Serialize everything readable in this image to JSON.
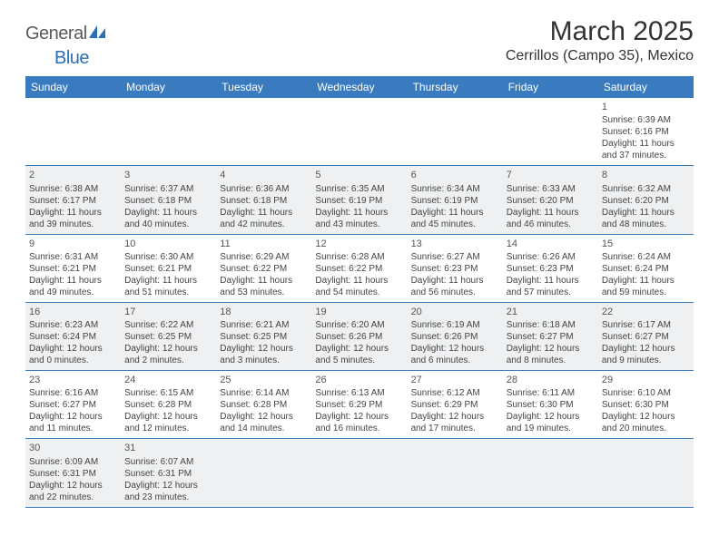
{
  "logo": {
    "text_gray": "General",
    "text_blue": "Blue",
    "icon_color": "#2b6fb5"
  },
  "title": "March 2025",
  "location": "Cerrillos (Campo 35), Mexico",
  "colors": {
    "header_bg": "#3a7bbf",
    "shaded_bg": "#eef0f2",
    "border": "#3a7bbf"
  },
  "weekdays": [
    "Sunday",
    "Monday",
    "Tuesday",
    "Wednesday",
    "Thursday",
    "Friday",
    "Saturday"
  ],
  "weeks": [
    [
      {
        "blank": true,
        "shaded": false
      },
      {
        "blank": true,
        "shaded": false
      },
      {
        "blank": true,
        "shaded": false
      },
      {
        "blank": true,
        "shaded": false
      },
      {
        "blank": true,
        "shaded": false
      },
      {
        "blank": true,
        "shaded": false
      },
      {
        "num": "1",
        "shaded": false,
        "sunrise": "Sunrise: 6:39 AM",
        "sunset": "Sunset: 6:16 PM",
        "daylight1": "Daylight: 11 hours",
        "daylight2": "and 37 minutes."
      }
    ],
    [
      {
        "num": "2",
        "shaded": true,
        "sunrise": "Sunrise: 6:38 AM",
        "sunset": "Sunset: 6:17 PM",
        "daylight1": "Daylight: 11 hours",
        "daylight2": "and 39 minutes."
      },
      {
        "num": "3",
        "shaded": true,
        "sunrise": "Sunrise: 6:37 AM",
        "sunset": "Sunset: 6:18 PM",
        "daylight1": "Daylight: 11 hours",
        "daylight2": "and 40 minutes."
      },
      {
        "num": "4",
        "shaded": true,
        "sunrise": "Sunrise: 6:36 AM",
        "sunset": "Sunset: 6:18 PM",
        "daylight1": "Daylight: 11 hours",
        "daylight2": "and 42 minutes."
      },
      {
        "num": "5",
        "shaded": true,
        "sunrise": "Sunrise: 6:35 AM",
        "sunset": "Sunset: 6:19 PM",
        "daylight1": "Daylight: 11 hours",
        "daylight2": "and 43 minutes."
      },
      {
        "num": "6",
        "shaded": true,
        "sunrise": "Sunrise: 6:34 AM",
        "sunset": "Sunset: 6:19 PM",
        "daylight1": "Daylight: 11 hours",
        "daylight2": "and 45 minutes."
      },
      {
        "num": "7",
        "shaded": true,
        "sunrise": "Sunrise: 6:33 AM",
        "sunset": "Sunset: 6:20 PM",
        "daylight1": "Daylight: 11 hours",
        "daylight2": "and 46 minutes."
      },
      {
        "num": "8",
        "shaded": true,
        "sunrise": "Sunrise: 6:32 AM",
        "sunset": "Sunset: 6:20 PM",
        "daylight1": "Daylight: 11 hours",
        "daylight2": "and 48 minutes."
      }
    ],
    [
      {
        "num": "9",
        "shaded": false,
        "sunrise": "Sunrise: 6:31 AM",
        "sunset": "Sunset: 6:21 PM",
        "daylight1": "Daylight: 11 hours",
        "daylight2": "and 49 minutes."
      },
      {
        "num": "10",
        "shaded": false,
        "sunrise": "Sunrise: 6:30 AM",
        "sunset": "Sunset: 6:21 PM",
        "daylight1": "Daylight: 11 hours",
        "daylight2": "and 51 minutes."
      },
      {
        "num": "11",
        "shaded": false,
        "sunrise": "Sunrise: 6:29 AM",
        "sunset": "Sunset: 6:22 PM",
        "daylight1": "Daylight: 11 hours",
        "daylight2": "and 53 minutes."
      },
      {
        "num": "12",
        "shaded": false,
        "sunrise": "Sunrise: 6:28 AM",
        "sunset": "Sunset: 6:22 PM",
        "daylight1": "Daylight: 11 hours",
        "daylight2": "and 54 minutes."
      },
      {
        "num": "13",
        "shaded": false,
        "sunrise": "Sunrise: 6:27 AM",
        "sunset": "Sunset: 6:23 PM",
        "daylight1": "Daylight: 11 hours",
        "daylight2": "and 56 minutes."
      },
      {
        "num": "14",
        "shaded": false,
        "sunrise": "Sunrise: 6:26 AM",
        "sunset": "Sunset: 6:23 PM",
        "daylight1": "Daylight: 11 hours",
        "daylight2": "and 57 minutes."
      },
      {
        "num": "15",
        "shaded": false,
        "sunrise": "Sunrise: 6:24 AM",
        "sunset": "Sunset: 6:24 PM",
        "daylight1": "Daylight: 11 hours",
        "daylight2": "and 59 minutes."
      }
    ],
    [
      {
        "num": "16",
        "shaded": true,
        "sunrise": "Sunrise: 6:23 AM",
        "sunset": "Sunset: 6:24 PM",
        "daylight1": "Daylight: 12 hours",
        "daylight2": "and 0 minutes."
      },
      {
        "num": "17",
        "shaded": true,
        "sunrise": "Sunrise: 6:22 AM",
        "sunset": "Sunset: 6:25 PM",
        "daylight1": "Daylight: 12 hours",
        "daylight2": "and 2 minutes."
      },
      {
        "num": "18",
        "shaded": true,
        "sunrise": "Sunrise: 6:21 AM",
        "sunset": "Sunset: 6:25 PM",
        "daylight1": "Daylight: 12 hours",
        "daylight2": "and 3 minutes."
      },
      {
        "num": "19",
        "shaded": true,
        "sunrise": "Sunrise: 6:20 AM",
        "sunset": "Sunset: 6:26 PM",
        "daylight1": "Daylight: 12 hours",
        "daylight2": "and 5 minutes."
      },
      {
        "num": "20",
        "shaded": true,
        "sunrise": "Sunrise: 6:19 AM",
        "sunset": "Sunset: 6:26 PM",
        "daylight1": "Daylight: 12 hours",
        "daylight2": "and 6 minutes."
      },
      {
        "num": "21",
        "shaded": true,
        "sunrise": "Sunrise: 6:18 AM",
        "sunset": "Sunset: 6:27 PM",
        "daylight1": "Daylight: 12 hours",
        "daylight2": "and 8 minutes."
      },
      {
        "num": "22",
        "shaded": true,
        "sunrise": "Sunrise: 6:17 AM",
        "sunset": "Sunset: 6:27 PM",
        "daylight1": "Daylight: 12 hours",
        "daylight2": "and 9 minutes."
      }
    ],
    [
      {
        "num": "23",
        "shaded": false,
        "sunrise": "Sunrise: 6:16 AM",
        "sunset": "Sunset: 6:27 PM",
        "daylight1": "Daylight: 12 hours",
        "daylight2": "and 11 minutes."
      },
      {
        "num": "24",
        "shaded": false,
        "sunrise": "Sunrise: 6:15 AM",
        "sunset": "Sunset: 6:28 PM",
        "daylight1": "Daylight: 12 hours",
        "daylight2": "and 12 minutes."
      },
      {
        "num": "25",
        "shaded": false,
        "sunrise": "Sunrise: 6:14 AM",
        "sunset": "Sunset: 6:28 PM",
        "daylight1": "Daylight: 12 hours",
        "daylight2": "and 14 minutes."
      },
      {
        "num": "26",
        "shaded": false,
        "sunrise": "Sunrise: 6:13 AM",
        "sunset": "Sunset: 6:29 PM",
        "daylight1": "Daylight: 12 hours",
        "daylight2": "and 16 minutes."
      },
      {
        "num": "27",
        "shaded": false,
        "sunrise": "Sunrise: 6:12 AM",
        "sunset": "Sunset: 6:29 PM",
        "daylight1": "Daylight: 12 hours",
        "daylight2": "and 17 minutes."
      },
      {
        "num": "28",
        "shaded": false,
        "sunrise": "Sunrise: 6:11 AM",
        "sunset": "Sunset: 6:30 PM",
        "daylight1": "Daylight: 12 hours",
        "daylight2": "and 19 minutes."
      },
      {
        "num": "29",
        "shaded": false,
        "sunrise": "Sunrise: 6:10 AM",
        "sunset": "Sunset: 6:30 PM",
        "daylight1": "Daylight: 12 hours",
        "daylight2": "and 20 minutes."
      }
    ],
    [
      {
        "num": "30",
        "shaded": true,
        "sunrise": "Sunrise: 6:09 AM",
        "sunset": "Sunset: 6:31 PM",
        "daylight1": "Daylight: 12 hours",
        "daylight2": "and 22 minutes."
      },
      {
        "num": "31",
        "shaded": true,
        "sunrise": "Sunrise: 6:07 AM",
        "sunset": "Sunset: 6:31 PM",
        "daylight1": "Daylight: 12 hours",
        "daylight2": "and 23 minutes."
      },
      {
        "blank": true,
        "shaded": true
      },
      {
        "blank": true,
        "shaded": true
      },
      {
        "blank": true,
        "shaded": true
      },
      {
        "blank": true,
        "shaded": true
      },
      {
        "blank": true,
        "shaded": true
      }
    ]
  ]
}
